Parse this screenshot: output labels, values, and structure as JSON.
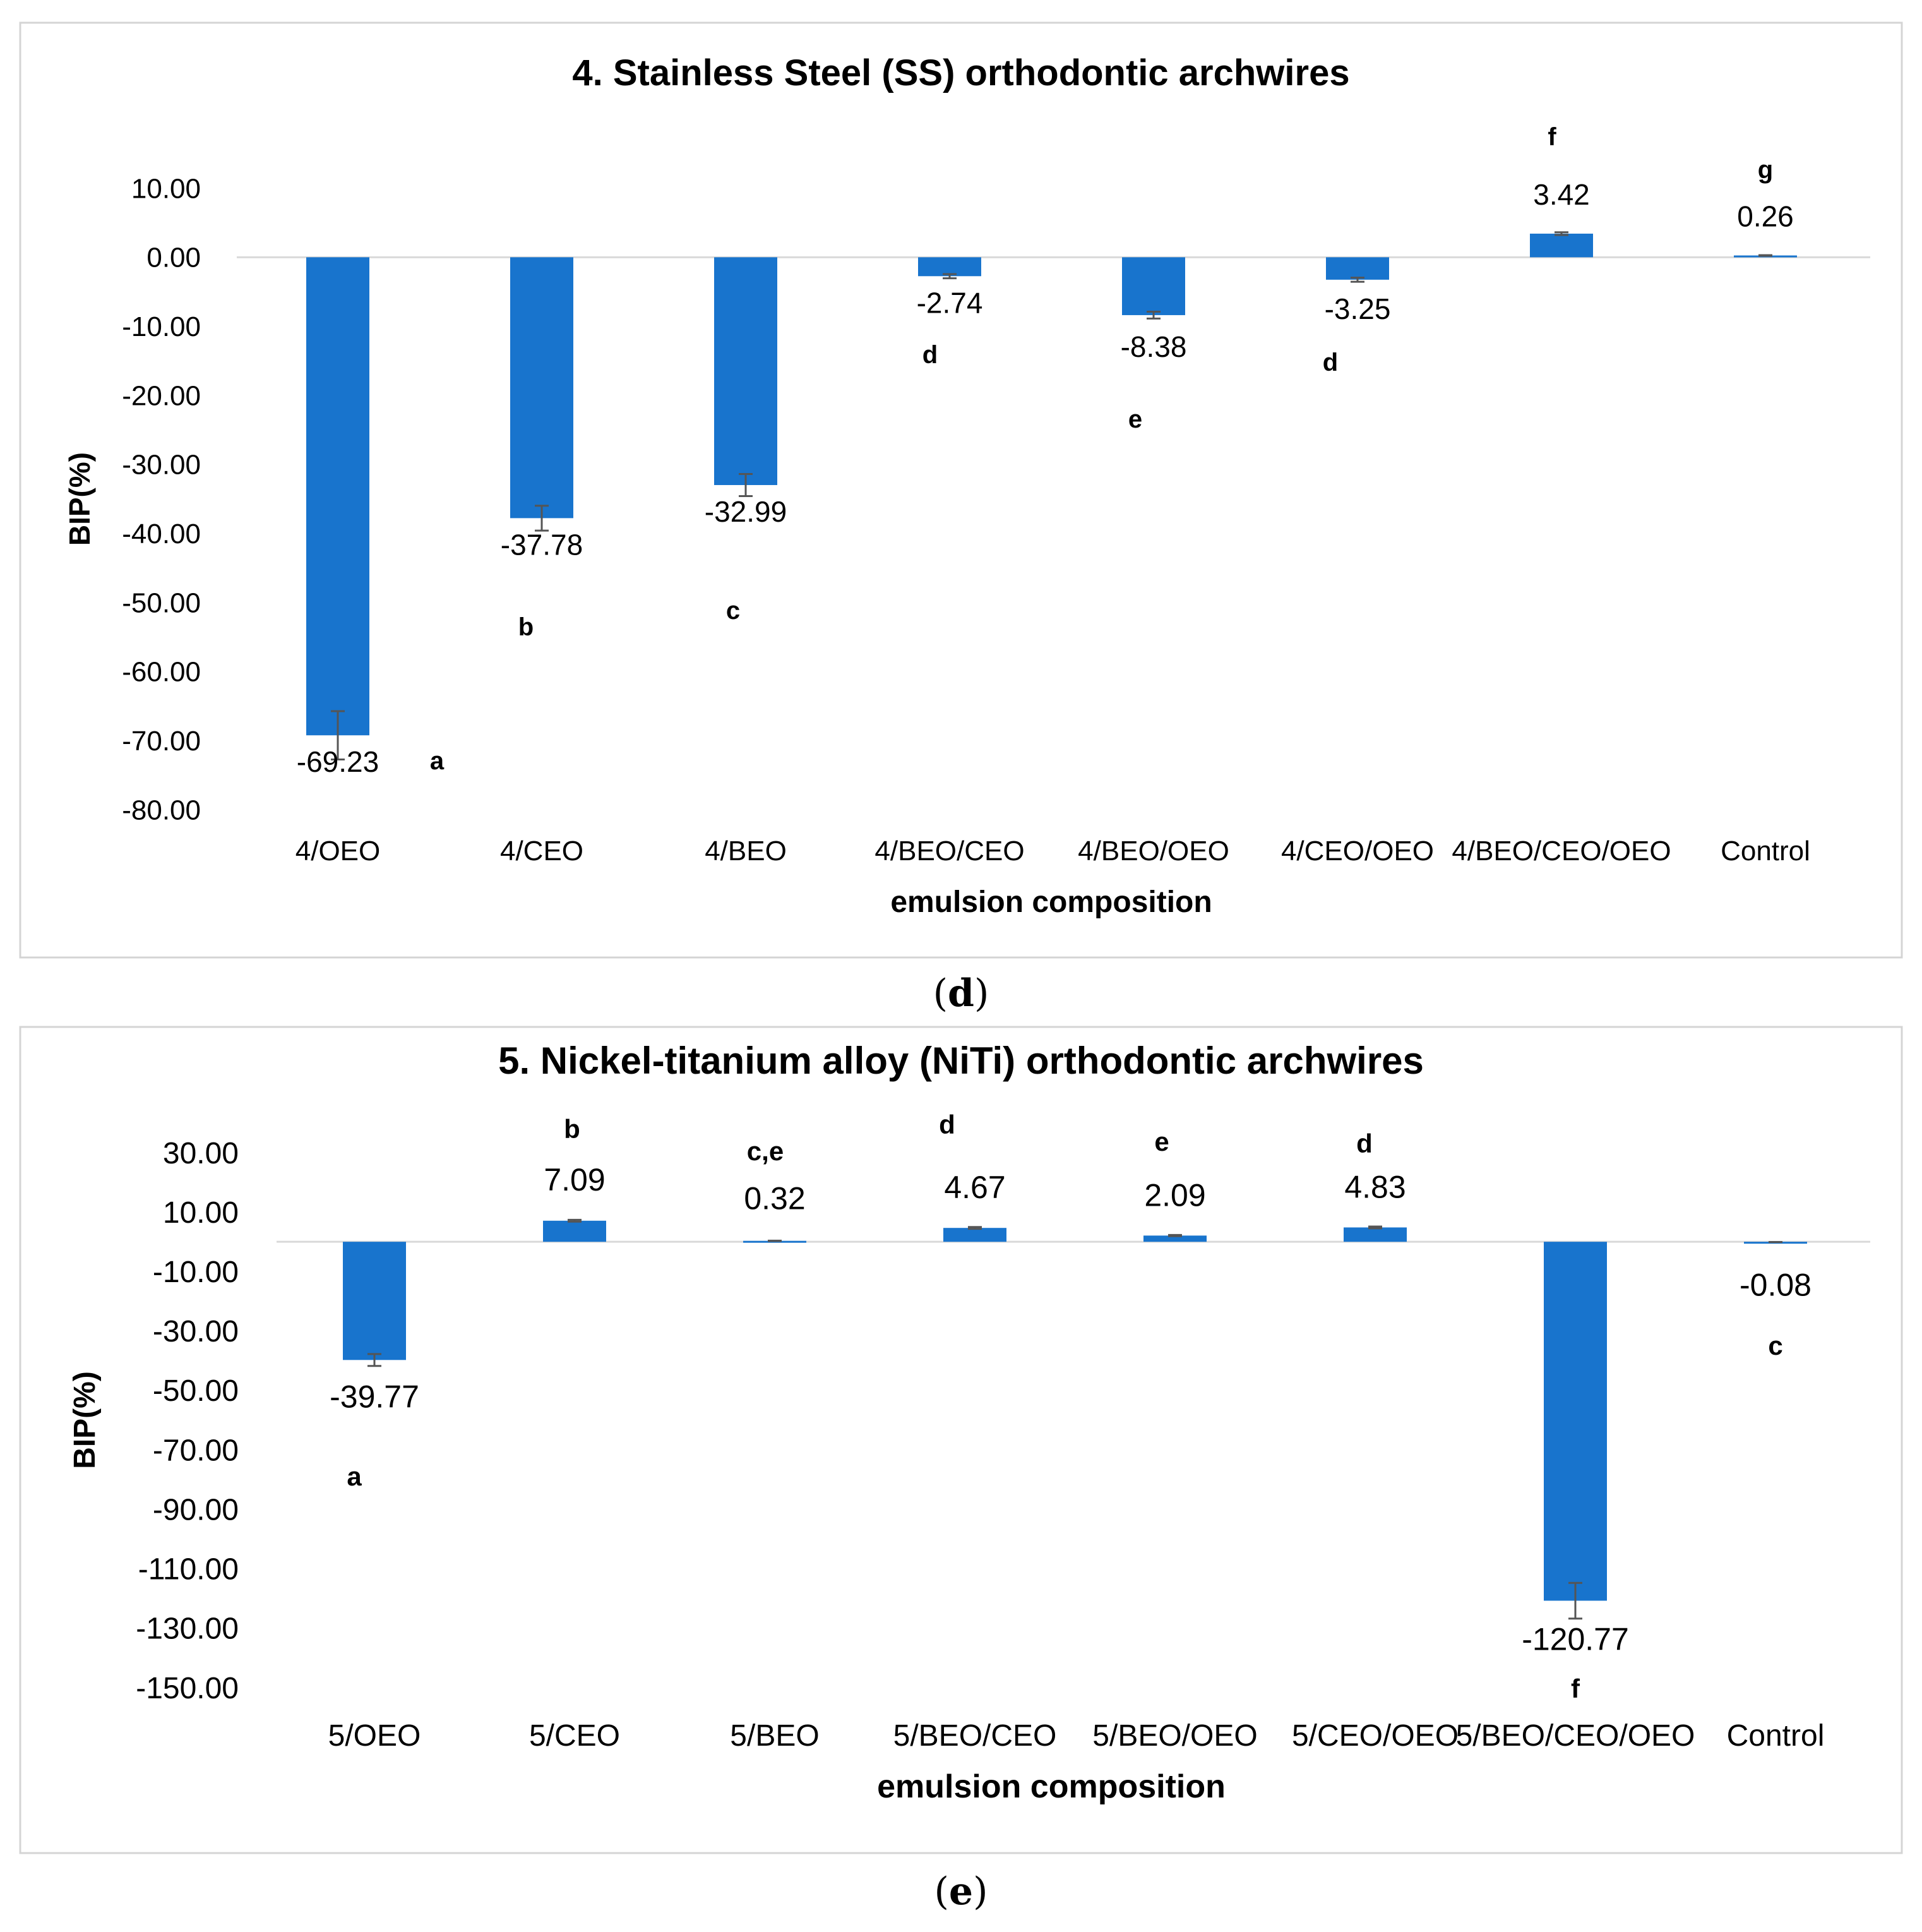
{
  "colors": {
    "bar": "#1874cd",
    "frame": "#d4d4d4",
    "axis": "#d9d9d9",
    "text": "#000000",
    "errorbar": "#555555"
  },
  "panels": [
    {
      "label": "d"
    },
    {
      "label": "e"
    }
  ],
  "chart_data": [
    {
      "type": "bar",
      "title": "4.  Stainless Steel (SS) orthodontic archwires",
      "xlabel": "emulsion composition",
      "ylabel": "BIP(%)",
      "ylim": [
        -80,
        10
      ],
      "yticks": [
        "10.00",
        "0.00",
        "-10.00",
        "-20.00",
        "-30.00",
        "-40.00",
        "-50.00",
        "-60.00",
        "-70.00",
        "-80.00"
      ],
      "ytick_values": [
        10,
        0,
        -10,
        -20,
        -30,
        -40,
        -50,
        -60,
        -70,
        -80
      ],
      "categories": [
        "4/OEO",
        "4/CEO",
        "4/BEO",
        "4/BEO/CEO",
        "4/BEO/OEO",
        "4/CEO/OEO",
        "4/BEO/CEO/OEO",
        "Control"
      ],
      "values": [
        -69.23,
        -37.78,
        -32.99,
        -2.74,
        -8.38,
        -3.25,
        3.42,
        0.26
      ],
      "value_labels": [
        "-69.23",
        "-37.78",
        "-32.99",
        "-2.74",
        "-8.38",
        "-3.25",
        "3.42",
        "0.26"
      ],
      "errors": [
        3.5,
        1.8,
        1.6,
        0.3,
        0.5,
        0.3,
        0.2,
        0.05
      ],
      "significance_letters": [
        "a",
        "b",
        "c",
        "d",
        "e",
        "d",
        "f",
        "g"
      ],
      "legend": "none",
      "grid": false
    },
    {
      "type": "bar",
      "title": "5. Nickel-titanium alloy (NiTi) orthodontic archwires",
      "xlabel": "emulsion composition",
      "ylabel": "BIP(%)",
      "ylim": [
        -150,
        30
      ],
      "yticks": [
        "30.00",
        "10.00",
        "-10.00",
        "-30.00",
        "-50.00",
        "-70.00",
        "-90.00",
        "-110.00",
        "-130.00",
        "-150.00"
      ],
      "ytick_values": [
        30,
        10,
        -10,
        -30,
        -50,
        -70,
        -90,
        -110,
        -130,
        -150
      ],
      "categories": [
        "5/OEO",
        "5/CEO",
        "5/BEO",
        "5/BEO/CEO",
        "5/BEO/OEO",
        "5/CEO/OEO",
        "5/BEO/CEO/OEO",
        "Control"
      ],
      "values": [
        -39.77,
        7.09,
        0.32,
        4.67,
        2.09,
        4.83,
        -120.77,
        -0.08
      ],
      "value_labels": [
        "-39.77",
        "7.09",
        "0.32",
        "4.67",
        "2.09",
        "4.83",
        "-120.77",
        "-0.08"
      ],
      "errors": [
        2.0,
        0.3,
        0.05,
        0.3,
        0.2,
        0.3,
        6.0,
        0.02
      ],
      "significance_letters": [
        "a",
        "b",
        "c,e",
        "d",
        "e",
        "d",
        "f",
        "c"
      ],
      "legend": "none",
      "grid": false
    }
  ]
}
